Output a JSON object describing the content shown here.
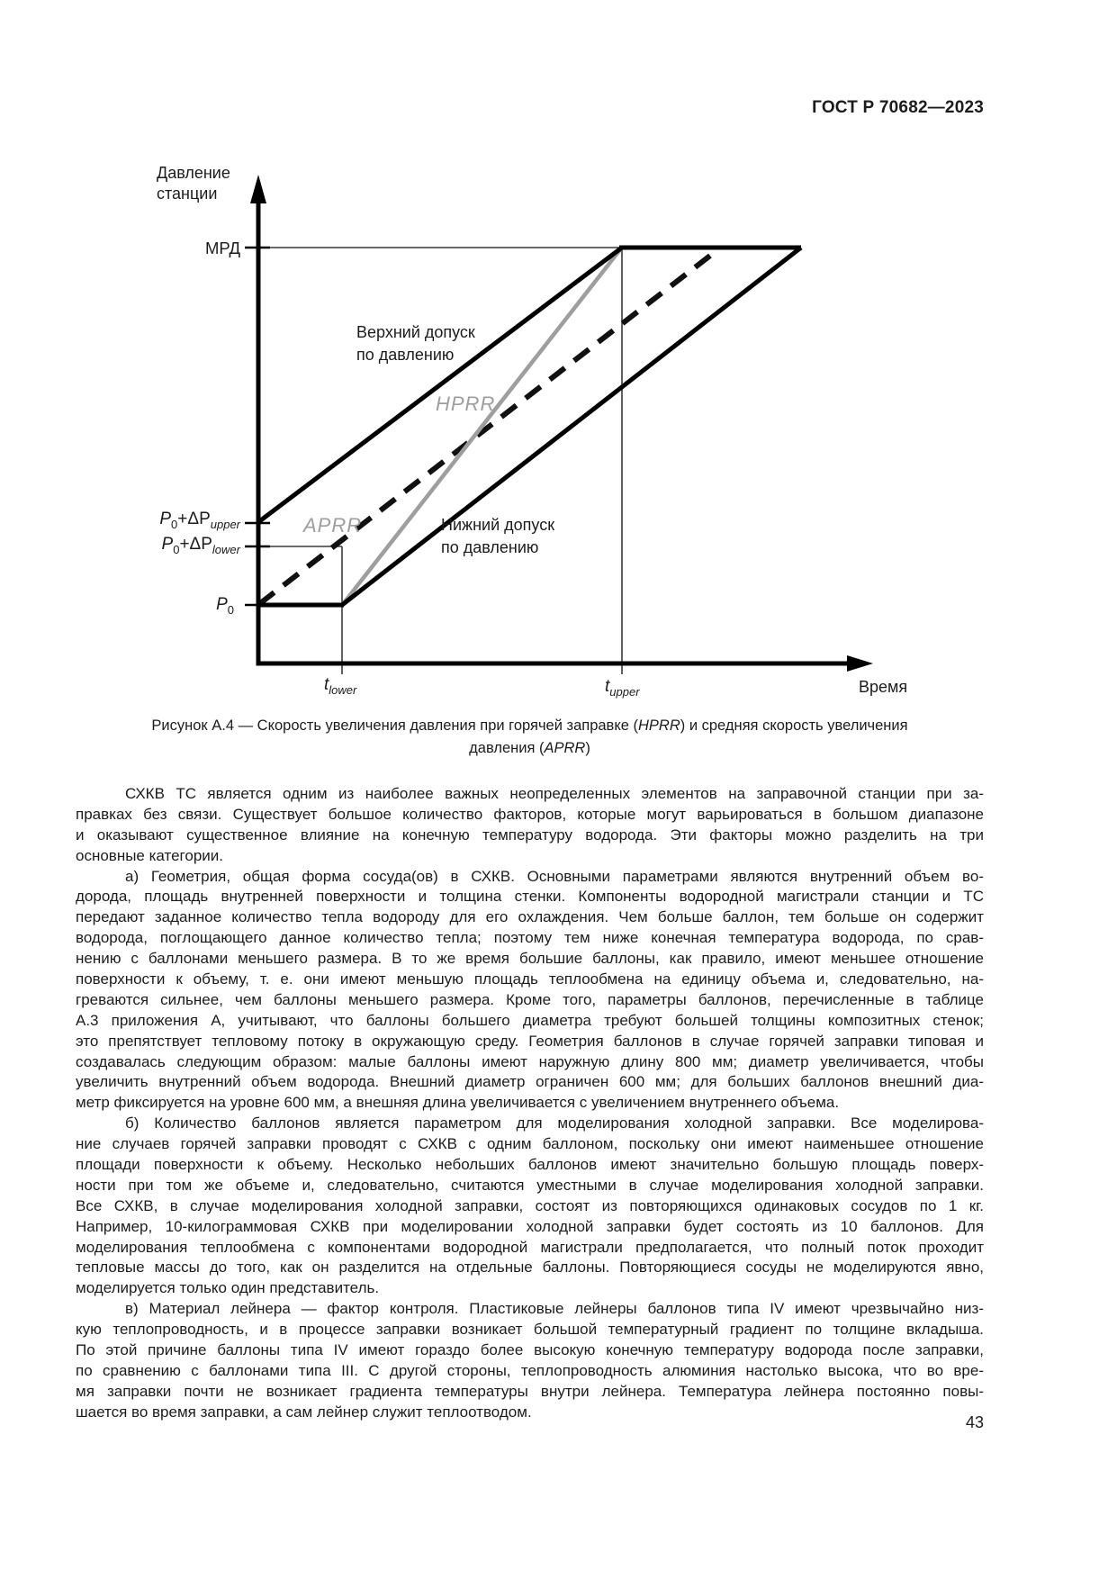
{
  "page": {
    "header": "ГОСТ Р 70682—2023",
    "page_number": "43"
  },
  "colors": {
    "ink": "#1c1c1c",
    "chart_line_black": "#000000",
    "chart_line_gray": "#9e9e9e"
  },
  "figure": {
    "chart": {
      "y_axis_title_line1": "Давление",
      "y_axis_title_line2": "станции",
      "x_axis_title": "Время",
      "y_labels": {
        "mrd": "МРД",
        "p_upper": {
          "p1": "P",
          "s1": "0",
          "op": "+ΔP",
          "s2": "upper"
        },
        "p_lower": {
          "p1": "P",
          "s1": "0",
          "op": "+ΔP",
          "s2": "lower"
        },
        "p0": {
          "p1": "P",
          "s1": "0"
        }
      },
      "x_labels": {
        "t_lower": {
          "t": "t",
          "sub": "lower"
        },
        "t_upper": {
          "t": "t",
          "sub": "upper"
        }
      },
      "annotations": {
        "upper_tolerance_line1": "Верхний допуск",
        "upper_tolerance_line2": "по давлению",
        "lower_tolerance_line1": "Нижний допуск",
        "lower_tolerance_line2": "по давлению",
        "hprr": "HPRR",
        "aprr": "APRR"
      }
    },
    "caption": {
      "line1_pre": "Рисунок А.4 — Скорость увеличения давления при горячей заправке (",
      "line1_italic": "HPRR",
      "line1_post": ") и средняя скорость увеличения",
      "line2_pre": "давления (",
      "line2_italic": "APRR",
      "line2_post": ")"
    }
  },
  "chart_data": {
    "type": "line",
    "title": "Рисунок А.4 — Скорость увеличения давления при горячей заправке (HPRR) и средняя скорость увеличения давления (APRR)",
    "xlabel": "Время",
    "ylabel": "Давление станции",
    "x_ticks": [
      "t_lower",
      "t_upper"
    ],
    "y_ticks": [
      "P0",
      "P0+ΔP_lower",
      "P0+ΔP_upper",
      "МРД"
    ],
    "grid": false,
    "legend_position": "inline-annotations",
    "series": [
      {
        "name": "Верхний допуск по давлению",
        "style": "solid thick black",
        "points": [
          [
            "t0",
            "P0+ΔP_upper"
          ],
          [
            "t_upper",
            "МРД"
          ],
          [
            "t_end",
            "МРД"
          ]
        ]
      },
      {
        "name": "Нижний допуск по давлению",
        "style": "solid thick black",
        "points": [
          [
            "t0",
            "P0"
          ],
          [
            "t_lower",
            "P0"
          ],
          [
            "t_end",
            "МРД"
          ]
        ]
      },
      {
        "name": "HPRR",
        "style": "solid gray",
        "points": [
          [
            "t_lower",
            "P0"
          ],
          [
            "t_upper",
            "МРД"
          ]
        ]
      },
      {
        "name": "APRR",
        "style": "dashed black",
        "points": [
          [
            "t0",
            "P0"
          ],
          [
            "t_lower",
            "P0+ΔP_lower"
          ],
          [
            "t_mid",
            "МРД"
          ]
        ]
      }
    ]
  },
  "body": {
    "paragraphs": [
      {
        "lines": [
          "СХКВ ТС является одним из наиболее важных неопределенных элементов на заправочной станции при за-",
          "правках без связи. Существует большое количество факторов, которые могут варьироваться в большом диапазоне",
          "и оказывают существенное влияние на конечную температуру водорода. Эти факторы можно разделить на три",
          "основные категории."
        ]
      },
      {
        "lines": [
          "а) Геометрия, общая форма сосуда(ов) в СХКВ. Основными параметрами являются внутренний объем во-",
          "дорода, площадь внутренней поверхности и толщина стенки. Компоненты водородной магистрали станции и ТС",
          "передают заданное количество тепла водороду для его охлаждения. Чем больше баллон, тем больше он содержит",
          "водорода, поглощающего данное количество тепла; поэтому тем ниже конечная температура водорода, по срав-",
          "нению с баллонами меньшего размера. В то же время большие баллоны, как правило, имеют меньшее отношение",
          "поверхности к объему, т. е. они имеют меньшую площадь теплообмена на единицу объема и, следовательно, на-",
          "греваются сильнее, чем баллоны меньшего размера. Кроме того, параметры баллонов, перечисленные в таблице",
          "А.3 приложения А, учитывают, что баллоны большего диаметра требуют большей толщины композитных стенок;",
          "это препятствует тепловому потоку в окружающую среду. Геометрия баллонов в случае горячей заправки типовая и",
          "создавалась следующим образом: малые баллоны имеют наружную длину 800 мм; диаметр увеличивается, чтобы",
          "увеличить внутренний объем водорода. Внешний диаметр ограничен 600 мм; для больших баллонов внешний диа-",
          "метр фиксируется на уровне 600 мм, а внешняя длина увеличивается с увеличением внутреннего объема."
        ]
      },
      {
        "lines": [
          "б) Количество баллонов является параметром для моделирования холодной заправки. Все моделирова-",
          "ние случаев горячей заправки проводят с СХКВ с одним баллоном, поскольку они имеют наименьшее отношение",
          "площади поверхности к объему. Несколько небольших баллонов имеют значительно большую площадь поверх-",
          "ности при том же объеме и, следовательно, считаются уместными в случае моделирования холодной заправки.",
          "Все СХКВ, в случае моделирования холодной заправки, состоят из повторяющихся одинаковых сосудов по 1 кг.",
          "Например, 10-килограммовая СХКВ при моделировании холодной заправки будет состоять из 10 баллонов. Для",
          "моделирования теплообмена с компонентами водородной магистрали предполагается, что полный поток проходит",
          "тепловые массы до того, как он разделится на отдельные баллоны. Повторяющиеся сосуды не моделируются явно,",
          "моделируется только один представитель."
        ]
      },
      {
        "lines": [
          "в) Материал лейнера — фактор контроля. Пластиковые лейнеры баллонов типа IV имеют чрезвычайно низ-",
          "кую теплопроводность, и в процессе заправки возникает большой температурный градиент по толщине вкладыша.",
          "По этой причине баллоны типа IV имеют гораздо более высокую конечную температуру водорода после заправки,",
          "по сравнению с баллонами типа III. С другой стороны, теплопроводность алюминия настолько высока, что во вре-",
          "мя заправки почти не возникает градиента температуры внутри лейнера. Температура лейнера постоянно повы-",
          "шается во время заправки, а сам лейнер служит теплоотводом."
        ]
      }
    ]
  }
}
